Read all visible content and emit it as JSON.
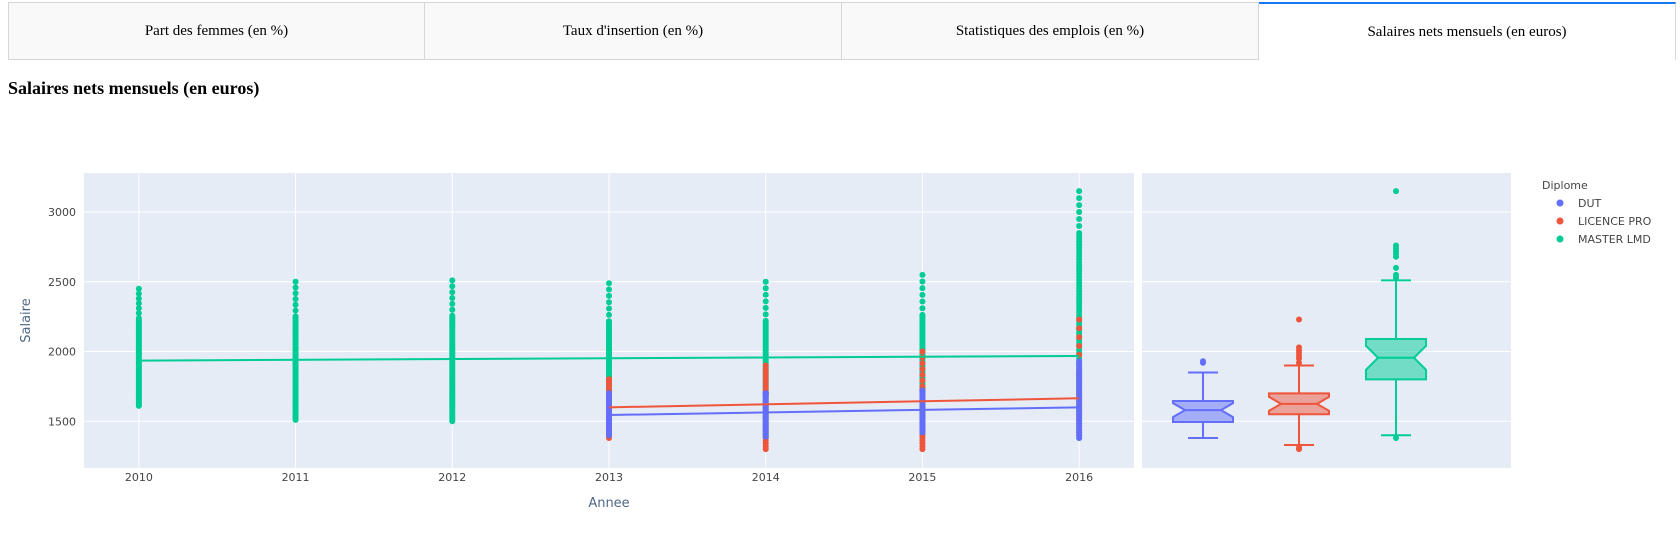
{
  "tabs": [
    {
      "label": "Part des femmes (en %)",
      "selected": false
    },
    {
      "label": "Taux d'insertion (en %)",
      "selected": false
    },
    {
      "label": "Statistiques des emplois (en %)",
      "selected": false
    },
    {
      "label": "Salaires nets mensuels (en euros)",
      "selected": true
    }
  ],
  "page_title": "Salaires nets mensuels (en euros)",
  "colors": {
    "DUT": "#636efa",
    "LICENCE PRO": "#ef553b",
    "MASTER LMD": "#00cc96",
    "plot_bg": "#e5ecf6"
  },
  "chart_data": {
    "type": "scatter",
    "xlabel": "Annee",
    "ylabel": "Salaire",
    "xlim": [
      2009.65,
      2016.35
    ],
    "ylim": [
      1165,
      3280
    ],
    "x_ticks": [
      2010,
      2011,
      2012,
      2013,
      2014,
      2015,
      2016
    ],
    "y_ticks": [
      1500,
      2000,
      2500,
      3000
    ],
    "grid": true,
    "legend": {
      "title": "Diplome",
      "position": "right",
      "entries": [
        "DUT",
        "LICENCE PRO",
        "MASTER LMD"
      ]
    },
    "series": [
      {
        "name": "DUT",
        "points_range": [
          {
            "year": 2013,
            "min": 1400,
            "max": 1700
          },
          {
            "year": 2014,
            "min": 1390,
            "max": 1700
          },
          {
            "year": 2015,
            "min": 1420,
            "max": 1720
          },
          {
            "year": 2016,
            "min": 1380,
            "max": 1930
          }
        ],
        "trendline": [
          [
            2013,
            1545
          ],
          [
            2016,
            1600
          ]
        ]
      },
      {
        "name": "LICENCE PRO",
        "points_range": [
          {
            "year": 2013,
            "min": 1380,
            "max": 1800
          },
          {
            "year": 2014,
            "min": 1300,
            "max": 1900
          },
          {
            "year": 2015,
            "min": 1300,
            "max": 2000
          },
          {
            "year": 2016,
            "min": 1400,
            "max": 2230
          }
        ],
        "trendline": [
          [
            2013,
            1600
          ],
          [
            2016,
            1665
          ]
        ]
      },
      {
        "name": "MASTER LMD",
        "points_range": [
          {
            "year": 2010,
            "min": 1610,
            "max": 2450
          },
          {
            "year": 2011,
            "min": 1510,
            "max": 2500
          },
          {
            "year": 2012,
            "min": 1500,
            "max": 2510
          },
          {
            "year": 2013,
            "min": 1400,
            "max": 2490
          },
          {
            "year": 2014,
            "min": 1380,
            "max": 2500
          },
          {
            "year": 2015,
            "min": 1400,
            "max": 2550
          },
          {
            "year": 2016,
            "min": 1380,
            "max": 3150
          }
        ],
        "trendline": [
          [
            2010,
            1935
          ],
          [
            2016,
            1968
          ]
        ]
      }
    ],
    "marginal_box": [
      {
        "name": "DUT",
        "q1": 1495,
        "median": 1580,
        "q3": 1645,
        "whisker_low": 1380,
        "whisker_high": 1850,
        "outliers": [
          1920,
          1930
        ]
      },
      {
        "name": "LICENCE PRO",
        "q1": 1550,
        "median": 1625,
        "q3": 1700,
        "whisker_low": 1330,
        "whisker_high": 1900,
        "outliers": [
          1300,
          1310,
          1920,
          1950,
          1970,
          1990,
          2010,
          2030,
          2230
        ]
      },
      {
        "name": "MASTER LMD",
        "q1": 1800,
        "median": 1955,
        "q3": 2090,
        "whisker_low": 1400,
        "whisker_high": 2510,
        "outliers": [
          1380,
          2530,
          2550,
          2600,
          2680,
          2700,
          2720,
          2740,
          2760,
          3150
        ]
      }
    ]
  }
}
